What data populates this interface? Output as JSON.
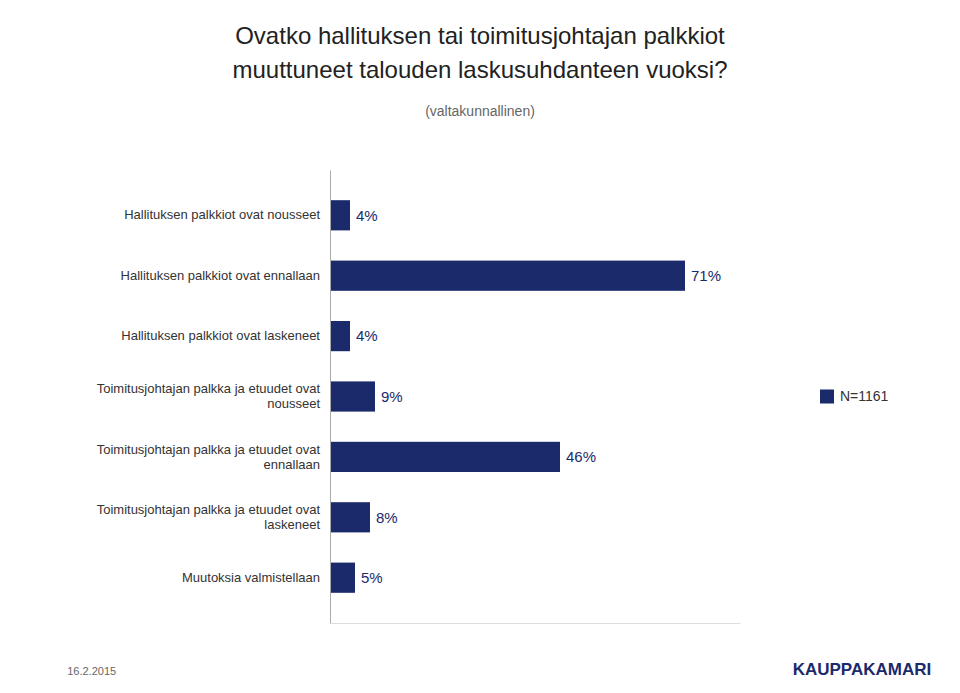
{
  "chart_data": {
    "type": "bar",
    "orientation": "horizontal",
    "title": [
      "Ovatko hallituksen tai toimitusjohtajan palkkiot",
      "muuttuneet talouden laskusuhdanteen vuoksi?"
    ],
    "subtitle": "(valtakunnallinen)",
    "annotations": [
      "16.2.2015",
      "KAUPPAKAMARI"
    ],
    "categories": [
      "Hallituksen palkkiot ovat nousseet",
      "Hallituksen palkkiot ovat ennallaan",
      "Hallituksen palkkiot ovat laskeneet",
      "Toimitusjohtajan palkka ja etuudet ovat\nnousseet",
      "Toimitusjohtajan palkka ja etuudet ovat\nennallaan",
      "Toimitusjohtajan palkka ja etuudet ovat\nlaskeneet",
      "Muutoksia valmistellaan"
    ],
    "series": [
      {
        "name": "N=1161",
        "color": "#1b2a6b",
        "values": [
          4,
          71,
          4,
          9,
          46,
          8,
          5
        ],
        "value_labels": [
          "4%",
          "71%",
          "4%",
          "9%",
          "46%",
          "8%",
          "5%"
        ]
      }
    ],
    "xlim": [
      0,
      82
    ],
    "data_labels": true,
    "legend": "right",
    "tick_labels": "y",
    "grid": false
  }
}
